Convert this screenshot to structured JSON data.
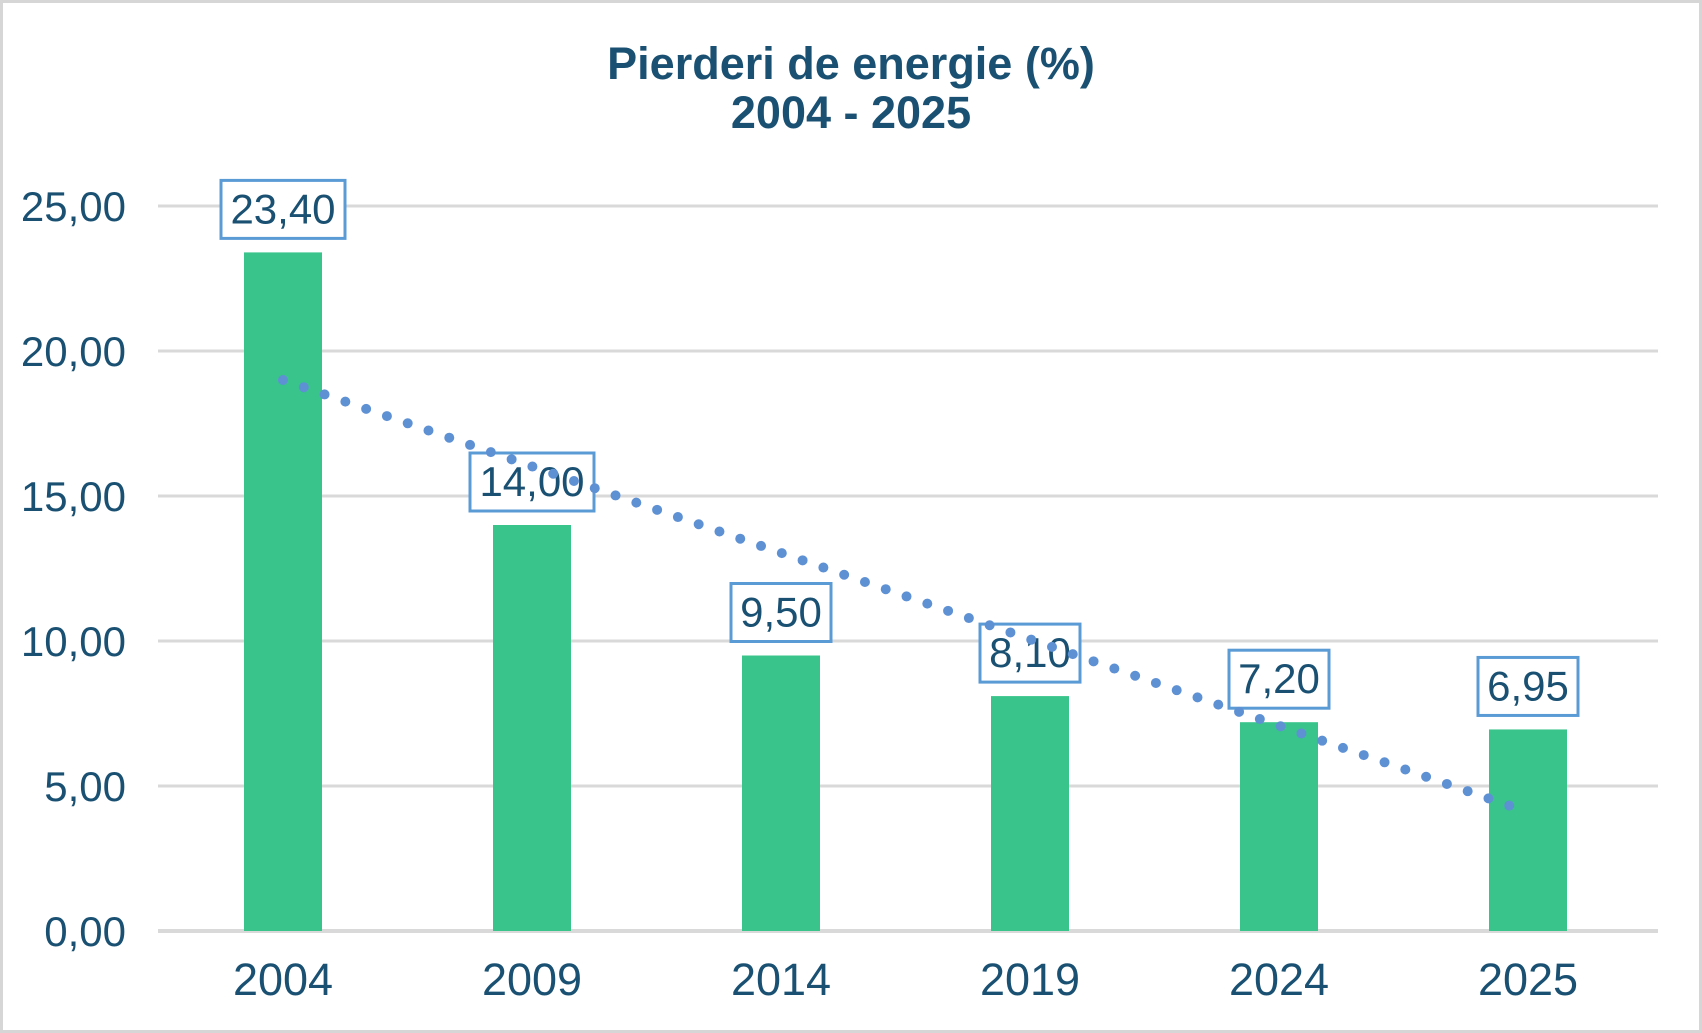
{
  "chart": {
    "title_line1": "Pierderi de energie (%)",
    "title_line2": "2004 - 2025"
  },
  "chart_data": {
    "type": "bar",
    "title": "Pierderi de energie (%) 2004 - 2025",
    "categories": [
      "2004",
      "2009",
      "2014",
      "2019",
      "2024",
      "2025"
    ],
    "values": [
      23.4,
      14.0,
      9.5,
      8.1,
      7.2,
      6.95
    ],
    "data_labels": [
      "23,40",
      "14,00",
      "9,50",
      "8,10",
      "7,20",
      "6,95"
    ],
    "xlabel": "",
    "ylabel": "",
    "ylim": [
      0,
      25
    ],
    "y_ticks": [
      0,
      5,
      10,
      15,
      20,
      25
    ],
    "y_tick_labels": [
      "0,00",
      "5,00",
      "10,00",
      "15,00",
      "20,00",
      "25,00"
    ],
    "grid": true,
    "legend_position": "none",
    "decimal_separator": ",",
    "trendline": {
      "style": "dotted",
      "start_category": "2004",
      "start_value": 19.0,
      "end_category": "2025",
      "end_value": 4.1
    },
    "colors": {
      "bar": "#38c48b",
      "trendline": "#5e91d4",
      "label_box_border": "#5b9bd5",
      "label_box_fill": "#ffffff",
      "text": "#1a5173",
      "gridline": "#d9d9d9",
      "axis_line": "#d9d9d9",
      "background": "#ffffff",
      "canvas_border": "#d6d6d6"
    }
  }
}
